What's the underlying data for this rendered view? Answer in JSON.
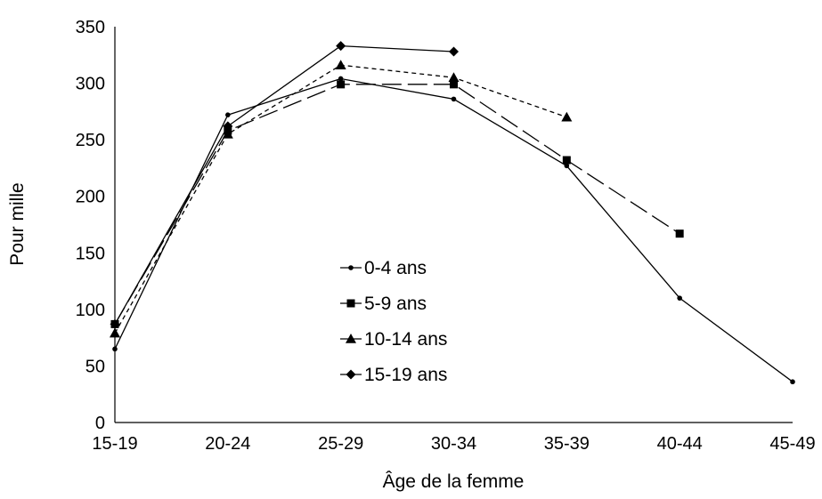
{
  "chart_data": {
    "type": "line",
    "title": "",
    "xlabel": "Âge de la femme",
    "ylabel": "Pour mille",
    "categories": [
      "15-19",
      "20-24",
      "25-29",
      "30-34",
      "35-39",
      "40-44",
      "45-49"
    ],
    "ylim": [
      0,
      350
    ],
    "yticks": [
      0,
      50,
      100,
      150,
      200,
      250,
      300,
      350
    ],
    "grid": false,
    "legend_position": "center",
    "series": [
      {
        "name": "0-4 ans",
        "marker": "circle",
        "dash": "solid",
        "values": [
          65,
          272,
          304,
          286,
          227,
          110,
          36
        ]
      },
      {
        "name": "5-9 ans",
        "marker": "square",
        "dash": "longdash",
        "values": [
          87,
          258,
          299,
          299,
          232,
          167,
          null
        ]
      },
      {
        "name": "10-14 ans",
        "marker": "triangle",
        "dash": "shortdash",
        "values": [
          79,
          255,
          316,
          305,
          270,
          null,
          null
        ]
      },
      {
        "name": "15-19 ans",
        "marker": "diamond",
        "dash": "solid",
        "values": [
          87,
          262,
          333,
          328,
          null,
          null,
          null
        ]
      }
    ],
    "colors": {
      "line": "#000000",
      "background": "#ffffff"
    }
  }
}
